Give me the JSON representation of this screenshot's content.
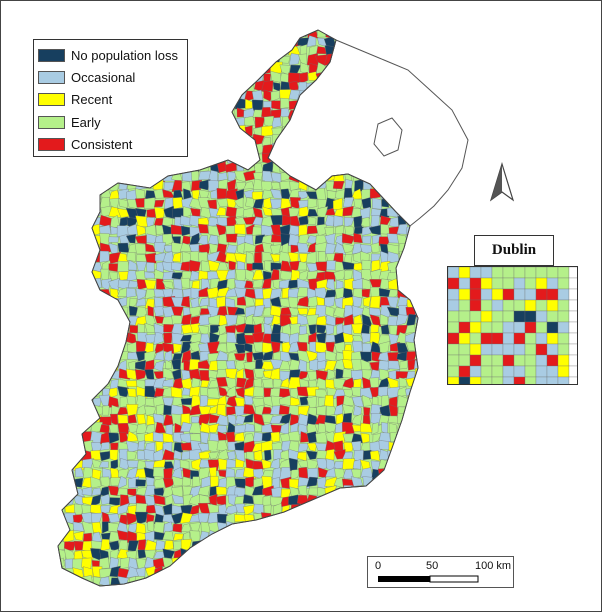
{
  "legend": {
    "items": [
      {
        "label": "No population loss",
        "color": "#173f5f",
        "icon": "swatch-no-loss"
      },
      {
        "label": "Occasional",
        "color": "#a9cce3",
        "icon": "swatch-occasional"
      },
      {
        "label": "Recent",
        "color": "#ffff00",
        "icon": "swatch-recent"
      },
      {
        "label": "Early",
        "color": "#b5f08a",
        "icon": "swatch-early"
      },
      {
        "label": "Consistent",
        "color": "#e31a1c",
        "icon": "swatch-consistent"
      }
    ]
  },
  "inset": {
    "title": "Dublin"
  },
  "scalebar": {
    "labels": [
      "0",
      "50",
      "100 km"
    ]
  },
  "north_arrow": {
    "icon": "north-arrow-icon"
  },
  "colors": {
    "land_outline": "#555555",
    "northern_ireland_fill": "#ffffff",
    "sea": "#ffffff"
  }
}
